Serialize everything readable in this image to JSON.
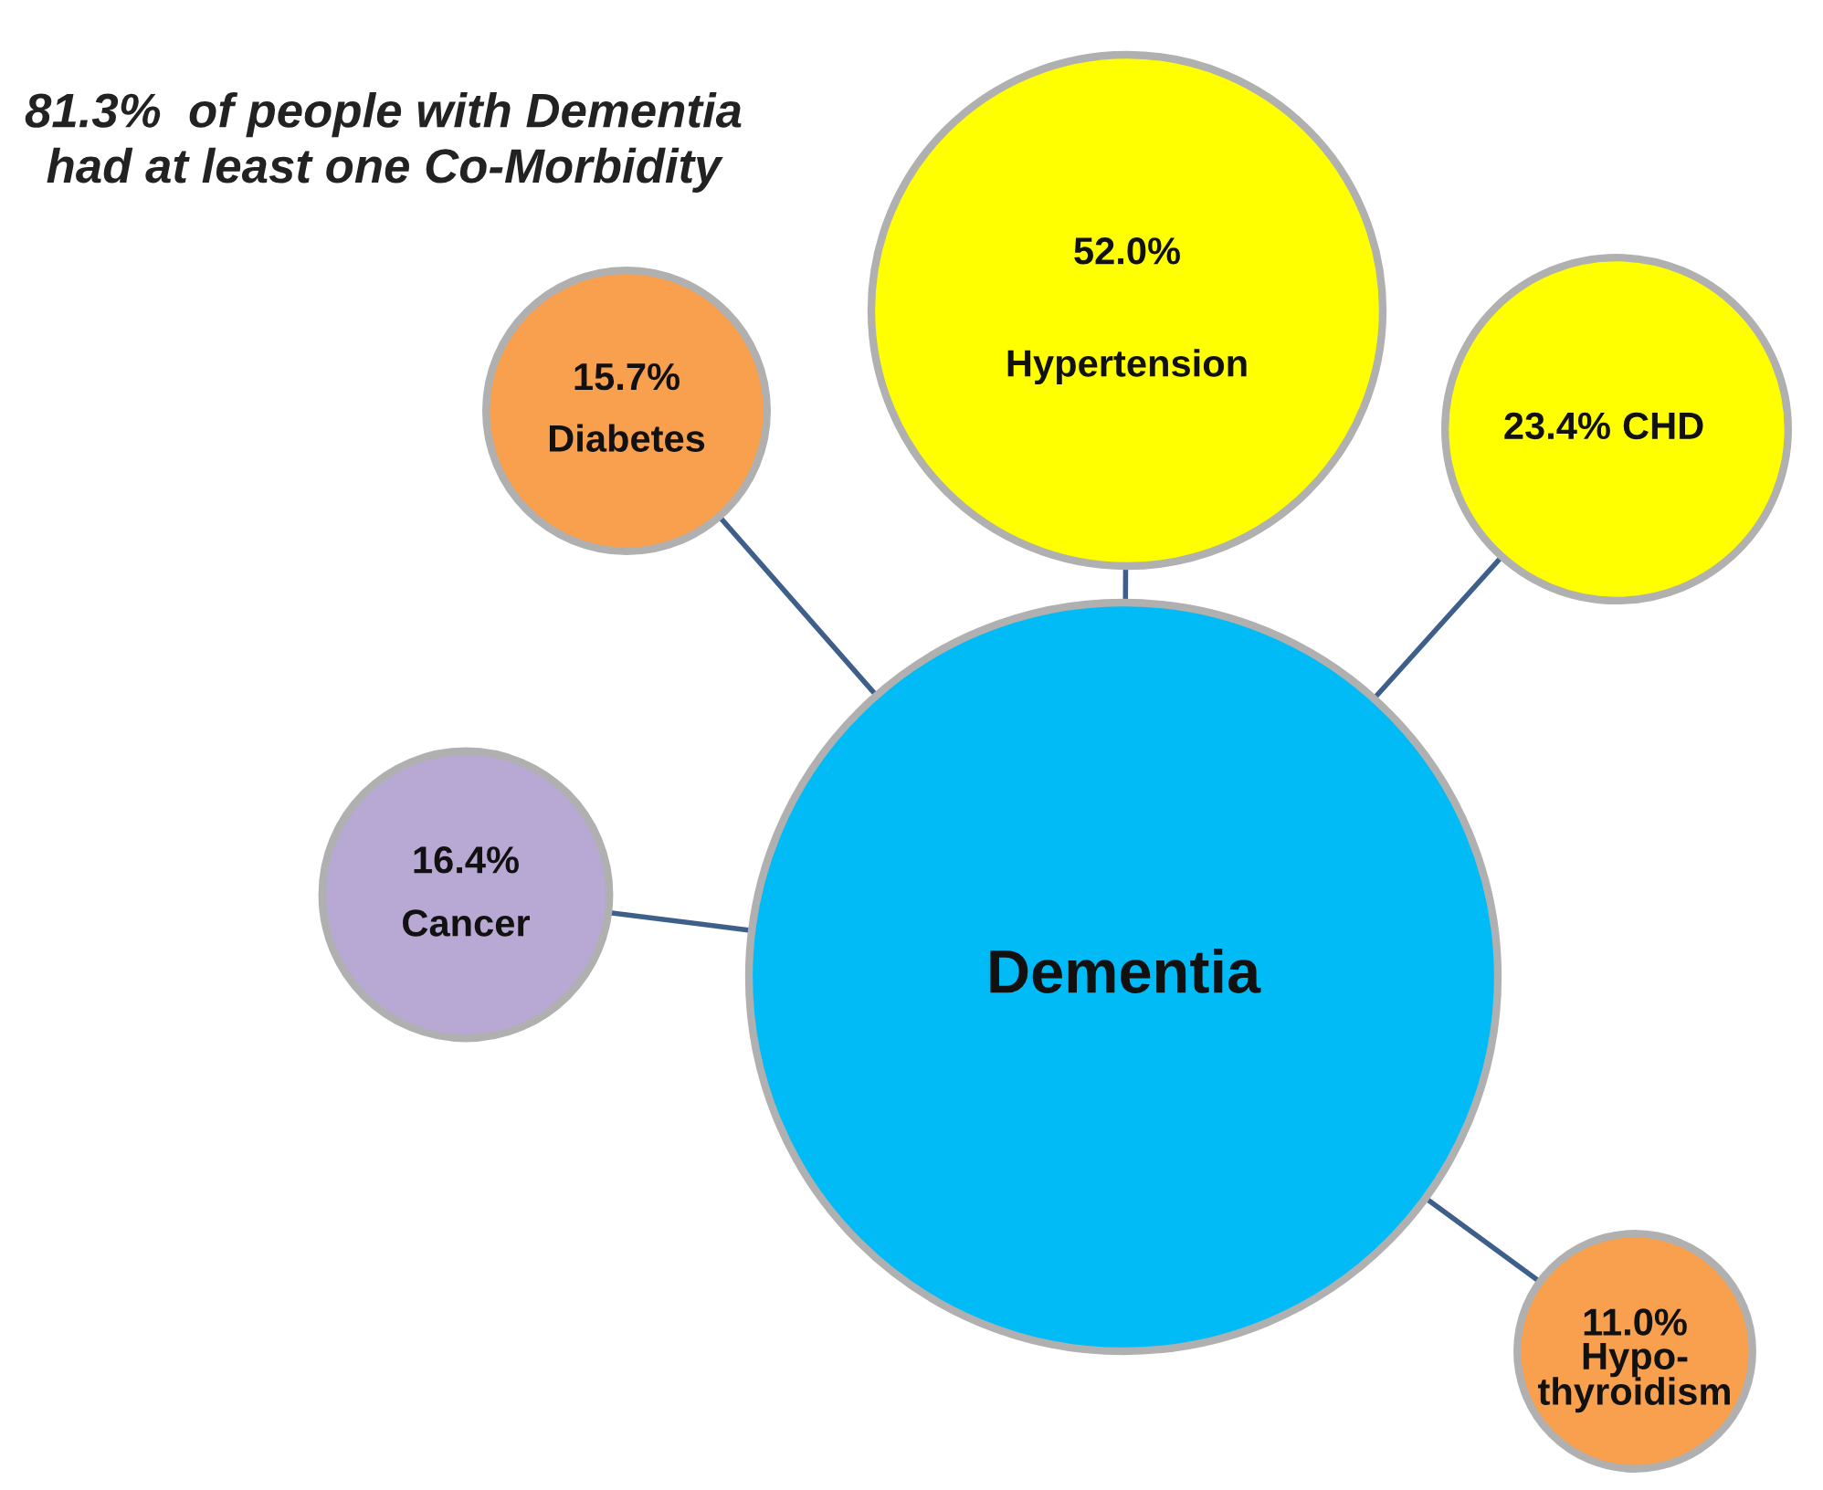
{
  "chart_data": {
    "type": "other",
    "title": "81.3%  of people with Dementia\nhad at least one Co-Morbidity",
    "categories": [
      "Dementia",
      "Hypertension",
      "CHD",
      "Diabetes",
      "Cancer",
      "Hypo-\nthyroidism"
    ],
    "values": [
      null,
      52.0,
      23.4,
      15.7,
      16.4,
      11.0
    ],
    "value_labels": [
      null,
      "52.0%",
      "23.4%",
      "15.7%",
      "16.4%",
      "11.0%"
    ],
    "colors": [
      "#00bbf5",
      "#ffff00",
      "#ffff00",
      "#f9a04f",
      "#b8a9d4",
      "#f9a04f"
    ]
  }
}
